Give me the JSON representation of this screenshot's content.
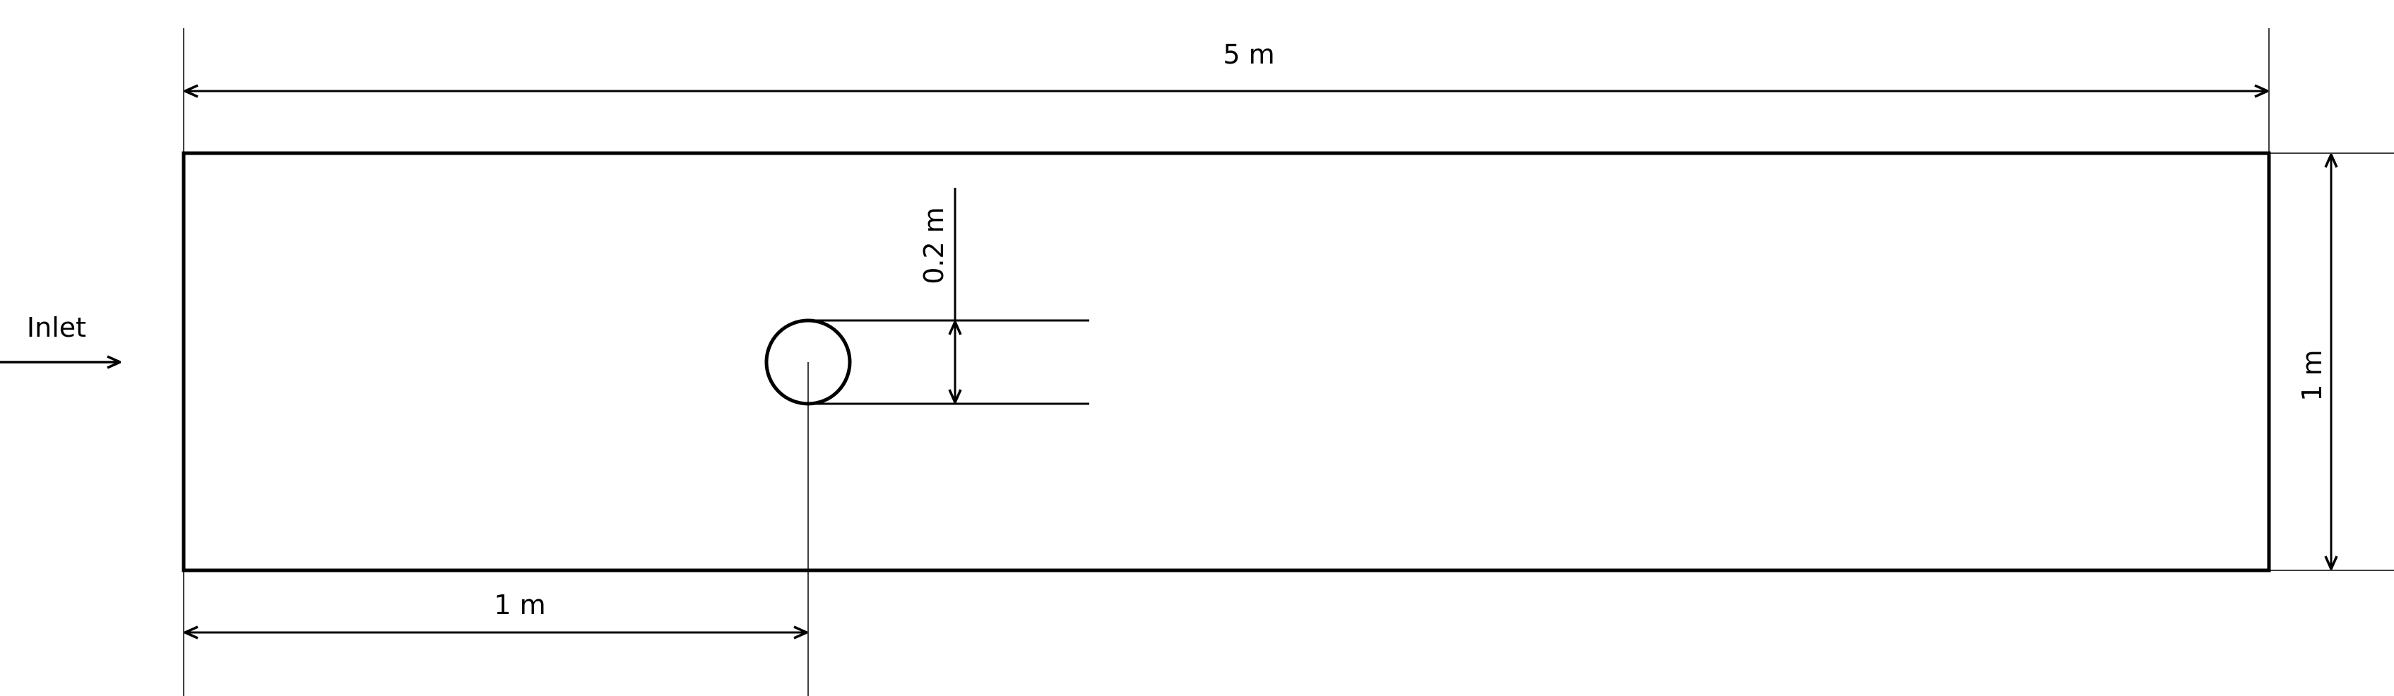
{
  "diagram": {
    "inlet_label": "Inlet",
    "dimensions": {
      "channel_length": "5 m",
      "channel_height": "1 m",
      "cylinder_diameter": "0.2 m",
      "cylinder_offset": "1 m"
    }
  }
}
